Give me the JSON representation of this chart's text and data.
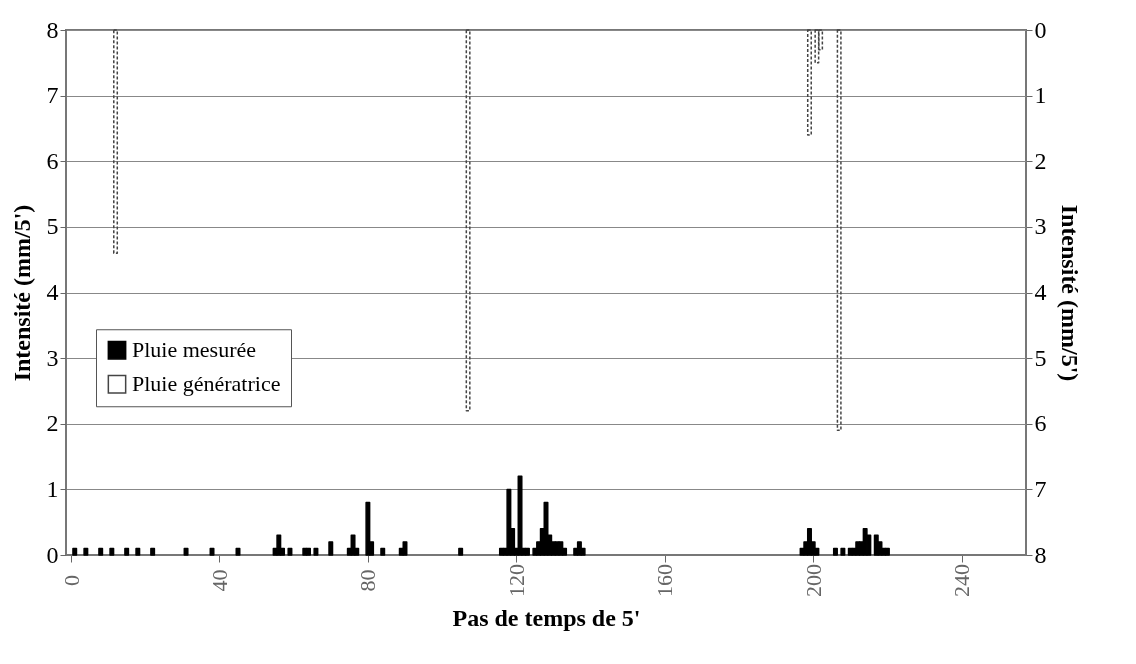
{
  "chart_data": {
    "type": "bar",
    "xlabel": "Pas de temps de 5'",
    "ylabel": "Intensité (mm/5')",
    "y2label": "Intensité (mm/5')",
    "xlim": [
      0,
      256
    ],
    "xticks": [
      0,
      40,
      80,
      120,
      160,
      200,
      240
    ],
    "ylim": [
      0,
      8
    ],
    "yticks": [
      0,
      1,
      2,
      3,
      4,
      5,
      6,
      7,
      8
    ],
    "y2lim": [
      8,
      0
    ],
    "y2ticks": [
      0,
      1,
      2,
      3,
      4,
      5,
      6,
      7,
      8
    ],
    "grid": "y",
    "legend": "bottom left",
    "series": [
      {
        "name": "Pluie mesurée",
        "color": "#000000",
        "x": [
          1,
          4,
          8,
          11,
          15,
          18,
          22,
          31,
          38,
          45,
          55,
          56,
          57,
          59,
          63,
          64,
          66,
          70,
          75,
          76,
          77,
          80,
          81,
          84,
          89,
          90,
          105,
          116,
          117,
          118,
          119,
          120,
          121,
          122,
          123,
          125,
          126,
          127,
          128,
          129,
          130,
          131,
          132,
          133,
          136,
          137,
          138,
          197,
          198,
          199,
          200,
          201,
          206,
          208,
          210,
          211,
          212,
          213,
          214,
          215,
          217,
          218,
          219,
          220
        ],
        "values": [
          0.1,
          0.1,
          0.1,
          0.1,
          0.1,
          0.1,
          0.1,
          0.1,
          0.1,
          0.1,
          0.1,
          0.3,
          0.1,
          0.1,
          0.1,
          0.1,
          0.1,
          0.2,
          0.1,
          0.3,
          0.1,
          0.8,
          0.2,
          0.1,
          0.1,
          0.2,
          0.1,
          0.1,
          0.1,
          1.0,
          0.4,
          0.1,
          1.2,
          0.1,
          0.1,
          0.1,
          0.2,
          0.4,
          0.8,
          0.3,
          0.2,
          0.2,
          0.2,
          0.1,
          0.1,
          0.2,
          0.1,
          0.1,
          0.2,
          0.4,
          0.2,
          0.1,
          0.1,
          0.1,
          0.1,
          0.1,
          0.2,
          0.2,
          0.4,
          0.3,
          0.3,
          0.2,
          0.1,
          0.1
        ]
      },
      {
        "name": "Pluie génératrice",
        "color": "#444444",
        "axis": "y2",
        "line_style": "dashed",
        "x": [
          12,
          107,
          199,
          201,
          202,
          207
        ],
        "values": [
          3.4,
          5.8,
          1.6,
          0.5,
          0.3,
          6.1
        ]
      }
    ]
  }
}
